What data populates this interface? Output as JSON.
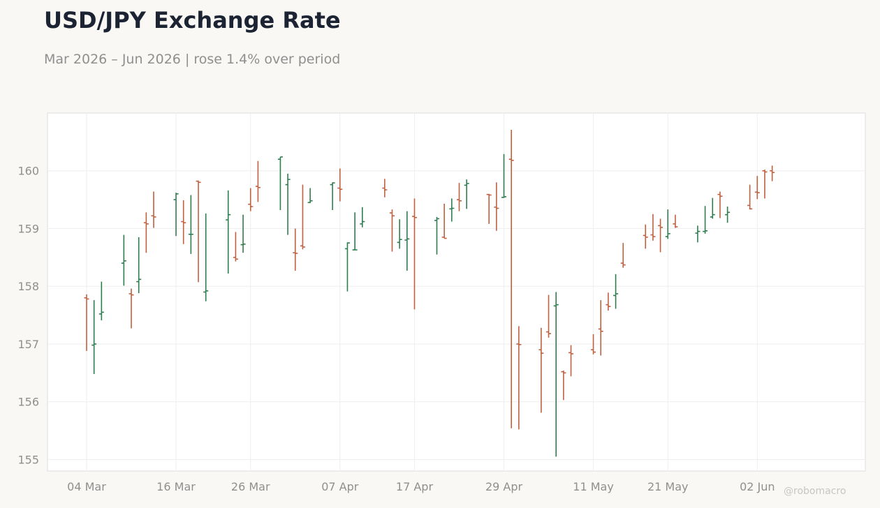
{
  "title": "USD/JPY Exchange Rate",
  "subtitle": "Mar 2026 – Jun 2026 | rose 1.4% over period",
  "watermark": "@robomacro",
  "colors": {
    "up": "#2e7d4f",
    "down": "#c0603e",
    "background": "#f9f8f5",
    "plot_background": "#ffffff",
    "grid": "#eeeeee",
    "axis": "#dddddd",
    "text_muted": "#8f8f8f",
    "title": "#1c2433"
  },
  "chart_data": {
    "type": "ohlc",
    "grid": true,
    "legend": "none",
    "ylim": [
      154.8,
      161.0
    ],
    "yticks": [
      155,
      156,
      157,
      158,
      159,
      160
    ],
    "xtick_labels": [
      "04 Mar",
      "16 Mar",
      "26 Mar",
      "07 Apr",
      "17 Apr",
      "29 Apr",
      "11 May",
      "21 May",
      "02 Jun"
    ],
    "dates": [
      "2026-03-04",
      "2026-03-05",
      "2026-03-06",
      "2026-03-09",
      "2026-03-10",
      "2026-03-11",
      "2026-03-12",
      "2026-03-13",
      "2026-03-16",
      "2026-03-17",
      "2026-03-18",
      "2026-03-19",
      "2026-03-20",
      "2026-03-23",
      "2026-03-24",
      "2026-03-25",
      "2026-03-26",
      "2026-03-27",
      "2026-03-30",
      "2026-03-31",
      "2026-04-01",
      "2026-04-02",
      "2026-04-03",
      "2026-04-06",
      "2026-04-07",
      "2026-04-08",
      "2026-04-09",
      "2026-04-10",
      "2026-04-13",
      "2026-04-14",
      "2026-04-15",
      "2026-04-16",
      "2026-04-17",
      "2026-04-20",
      "2026-04-21",
      "2026-04-22",
      "2026-04-23",
      "2026-04-24",
      "2026-04-27",
      "2026-04-28",
      "2026-04-29",
      "2026-04-30",
      "2026-05-01",
      "2026-05-04",
      "2026-05-05",
      "2026-05-06",
      "2026-05-07",
      "2026-05-08",
      "2026-05-11",
      "2026-05-12",
      "2026-05-13",
      "2026-05-14",
      "2026-05-15",
      "2026-05-18",
      "2026-05-19",
      "2026-05-20",
      "2026-05-21",
      "2026-05-22",
      "2026-05-25",
      "2026-05-26",
      "2026-05-27",
      "2026-05-28",
      "2026-05-29",
      "2026-06-01",
      "2026-06-02",
      "2026-06-03",
      "2026-06-04"
    ],
    "open": [
      157.8,
      156.98,
      157.52,
      158.4,
      157.87,
      158.08,
      159.1,
      159.22,
      159.5,
      159.12,
      158.9,
      159.82,
      157.9,
      159.15,
      158.5,
      158.72,
      159.42,
      159.73,
      160.2,
      159.76,
      158.58,
      158.7,
      159.45,
      159.76,
      159.7,
      158.65,
      158.63,
      159.08,
      159.7,
      159.27,
      158.76,
      158.8,
      159.21,
      159.14,
      158.85,
      159.34,
      159.5,
      159.75,
      159.59,
      159.37,
      159.54,
      160.2,
      157.0,
      156.9,
      157.21,
      157.66,
      156.52,
      156.85,
      156.9,
      157.26,
      157.68,
      157.84,
      158.4,
      158.88,
      158.89,
      159.05,
      158.86,
      159.08,
      158.92,
      158.95,
      159.2,
      159.59,
      159.24,
      159.4,
      159.63,
      160.0,
      160.0
    ],
    "high": [
      157.86,
      157.76,
      158.08,
      158.89,
      157.96,
      158.85,
      159.28,
      159.64,
      159.62,
      159.49,
      159.58,
      159.83,
      159.26,
      159.66,
      158.94,
      159.24,
      159.7,
      160.17,
      160.24,
      159.95,
      159.0,
      159.76,
      159.7,
      159.8,
      160.04,
      158.76,
      159.28,
      159.37,
      159.86,
      159.33,
      159.16,
      159.3,
      159.52,
      159.2,
      159.43,
      159.52,
      159.79,
      159.85,
      159.6,
      159.8,
      160.29,
      160.71,
      157.31,
      157.28,
      157.85,
      157.9,
      156.54,
      156.98,
      157.17,
      157.76,
      157.89,
      158.21,
      158.75,
      159.07,
      159.25,
      159.17,
      159.33,
      159.24,
      159.05,
      159.39,
      159.53,
      159.64,
      159.38,
      159.76,
      159.91,
      160.02,
      160.09
    ],
    "low": [
      156.88,
      156.48,
      157.41,
      158.01,
      157.27,
      157.88,
      158.58,
      159.01,
      158.87,
      158.73,
      158.56,
      158.07,
      157.74,
      158.22,
      158.43,
      158.58,
      159.3,
      159.46,
      159.32,
      158.89,
      158.27,
      158.64,
      159.44,
      159.32,
      159.47,
      157.91,
      158.63,
      159.02,
      159.54,
      158.6,
      158.65,
      158.27,
      157.6,
      158.55,
      158.83,
      159.12,
      159.3,
      159.34,
      159.08,
      158.96,
      159.53,
      155.54,
      155.52,
      155.81,
      157.11,
      155.05,
      156.03,
      156.44,
      156.82,
      156.8,
      157.58,
      157.61,
      158.32,
      158.65,
      158.79,
      158.59,
      158.82,
      159.01,
      158.76,
      158.91,
      159.17,
      159.18,
      159.1,
      159.33,
      159.51,
      159.52,
      159.82
    ],
    "close": [
      157.78,
      157.0,
      157.55,
      158.44,
      157.85,
      158.12,
      159.08,
      159.2,
      159.6,
      159.1,
      158.9,
      159.8,
      157.92,
      159.24,
      158.47,
      158.73,
      159.38,
      159.71,
      160.24,
      159.85,
      158.57,
      158.68,
      159.48,
      159.79,
      159.68,
      158.75,
      158.63,
      159.12,
      159.67,
      159.22,
      158.81,
      158.82,
      159.19,
      159.17,
      158.83,
      159.35,
      159.48,
      159.78,
      159.58,
      159.35,
      159.55,
      160.18,
      156.99,
      156.84,
      157.18,
      157.68,
      156.5,
      156.83,
      156.86,
      157.22,
      157.65,
      157.87,
      158.37,
      158.85,
      158.86,
      159.02,
      158.91,
      159.03,
      158.95,
      158.96,
      159.24,
      159.56,
      159.28,
      159.34,
      159.62,
      159.98,
      159.97
    ]
  }
}
